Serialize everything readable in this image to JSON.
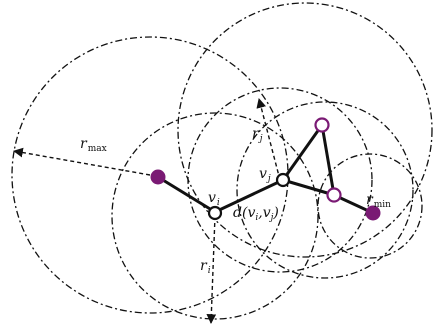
{
  "labels": {
    "r_max": {
      "main": "r",
      "sub": "max"
    },
    "r_min": {
      "main": "r",
      "sub": "min"
    },
    "r_i": {
      "main": "r",
      "sub": "i"
    },
    "r_j": {
      "main": "r",
      "sub": "j"
    },
    "v_i": {
      "main": "v",
      "sub": "i"
    },
    "v_j": {
      "main": "v",
      "sub": "j"
    },
    "distance": {
      "prefix": "d(",
      "v1": "v",
      "s1": "i",
      "comma": ",",
      "v2": "v",
      "s2": "j",
      "suffix": ")"
    }
  },
  "colors": {
    "stroke": "#111111",
    "filled_node": "#7a1a74",
    "hollow_node_stroke": "#7a1a74",
    "vertex_stroke": "#111111",
    "background": "#ffffff"
  }
}
